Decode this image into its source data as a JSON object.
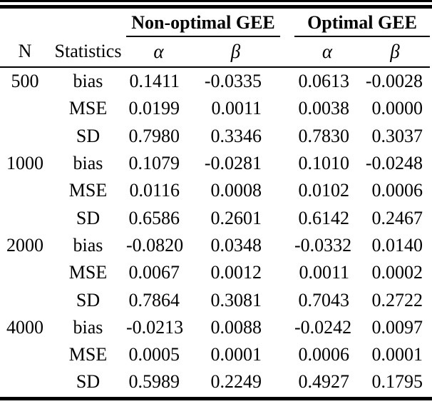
{
  "page": {
    "background": "#ffffff",
    "text_color": "#000000"
  },
  "table": {
    "group_headers": {
      "non_optimal": "Non-optimal GEE",
      "optimal": "Optimal GEE"
    },
    "column_headers": {
      "n": "N",
      "statistics": "Statistics",
      "alpha1": "α",
      "beta1": "β",
      "alpha2": "α",
      "beta2": "β"
    },
    "rows": [
      {
        "n": "500",
        "stat": "bias",
        "v": [
          "0.1411",
          "-0.0335",
          "0.0613",
          "-0.0028"
        ]
      },
      {
        "n": "",
        "stat": "MSE",
        "v": [
          "0.0199",
          "0.0011",
          "0.0038",
          "0.0000"
        ]
      },
      {
        "n": "",
        "stat": "SD",
        "v": [
          "0.7980",
          "0.3346",
          "0.7830",
          "0.3037"
        ]
      },
      {
        "n": "1000",
        "stat": "bias",
        "v": [
          "0.1079",
          "-0.0281",
          "0.1010",
          "-0.0248"
        ]
      },
      {
        "n": "",
        "stat": "MSE",
        "v": [
          "0.0116",
          "0.0008",
          "0.0102",
          "0.0006"
        ]
      },
      {
        "n": "",
        "stat": "SD",
        "v": [
          "0.6586",
          "0.2601",
          "0.6142",
          "0.2467"
        ]
      },
      {
        "n": "2000",
        "stat": "bias",
        "v": [
          "-0.0820",
          "0.0348",
          "-0.0332",
          "0.0140"
        ]
      },
      {
        "n": "",
        "stat": "MSE",
        "v": [
          "0.0067",
          "0.0012",
          "0.0011",
          "0.0002"
        ]
      },
      {
        "n": "",
        "stat": "SD",
        "v": [
          "0.7864",
          "0.3081",
          "0.7043",
          "0.2722"
        ]
      },
      {
        "n": "4000",
        "stat": "bias",
        "v": [
          "-0.0213",
          "0.0088",
          "-0.0242",
          "0.0097"
        ]
      },
      {
        "n": "",
        "stat": "MSE",
        "v": [
          "0.0005",
          "0.0001",
          "0.0006",
          "0.0001"
        ]
      },
      {
        "n": "",
        "stat": "SD",
        "v": [
          "0.5989",
          "0.2249",
          "0.4927",
          "0.1795"
        ]
      }
    ]
  }
}
